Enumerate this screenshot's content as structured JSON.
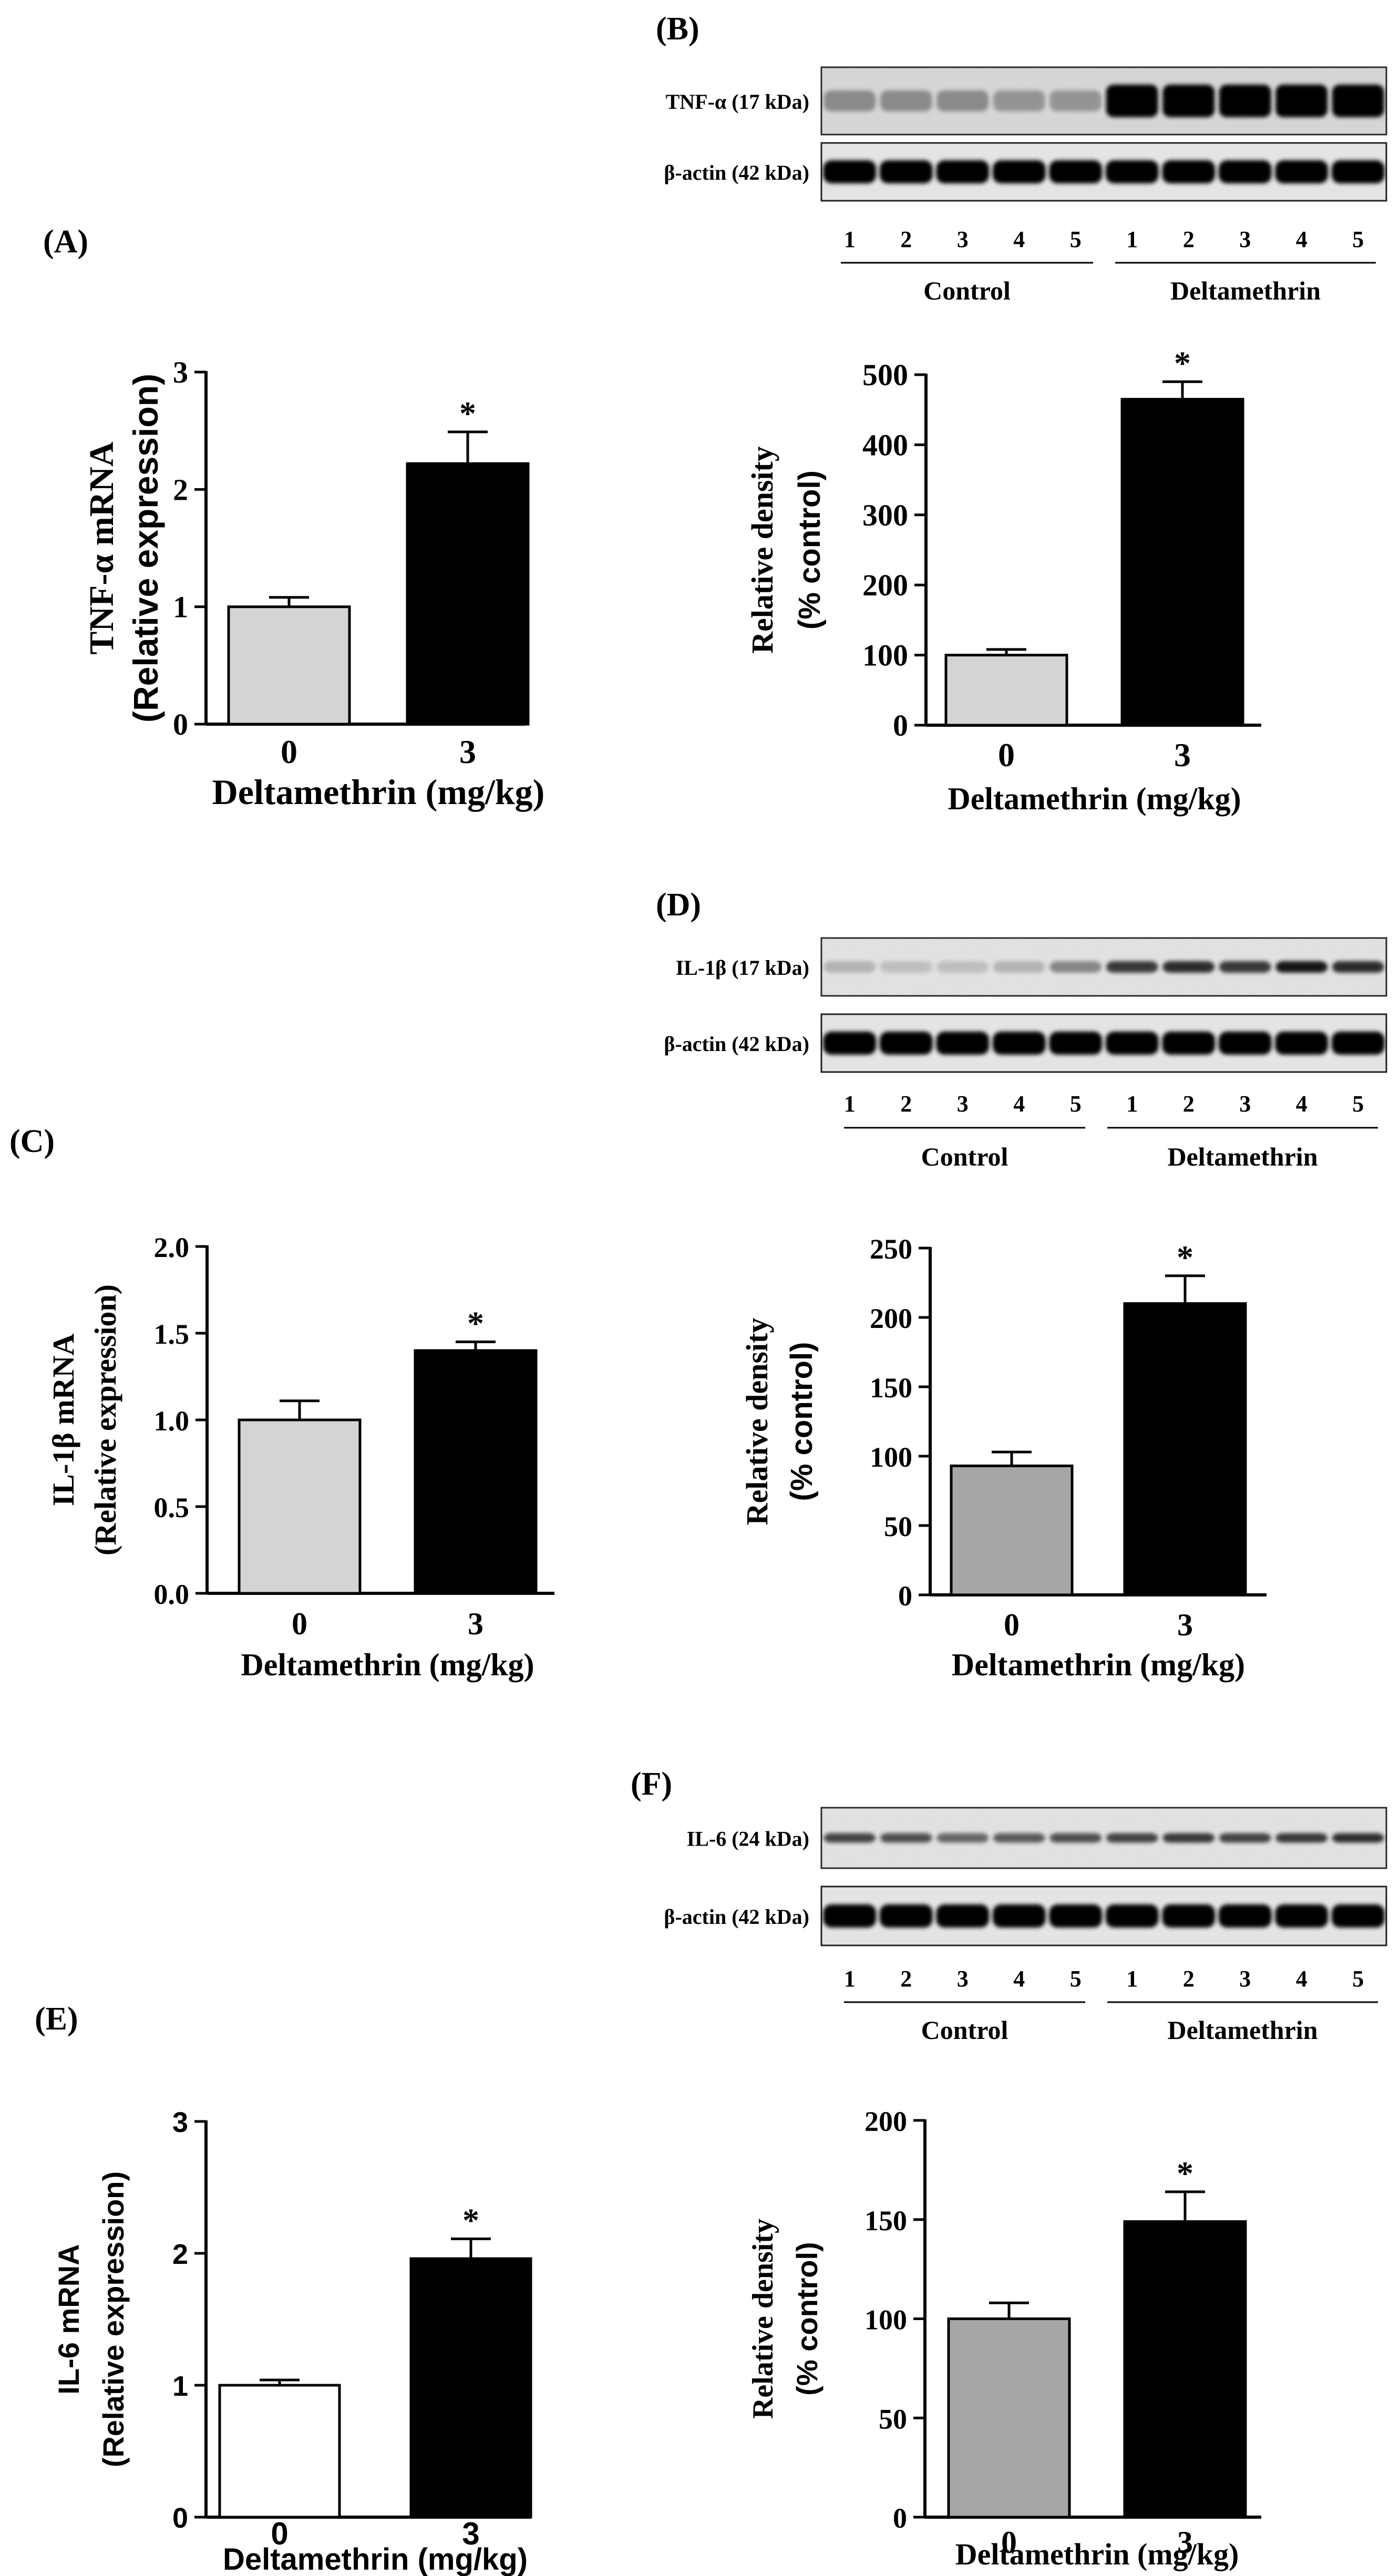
{
  "figure": {
    "panels": {
      "A": "(A)",
      "B": "(B)",
      "C": "(C)",
      "D": "(D)",
      "E": "(E)",
      "F": "(F)"
    },
    "lanes": [
      "1",
      "2",
      "3",
      "4",
      "5",
      "1",
      "2",
      "3",
      "4",
      "5"
    ],
    "groups": [
      "Control",
      "Deltamethrin"
    ],
    "blots": [
      {
        "panel": "B",
        "target": "TNF-α (17 kDa)",
        "loading": "β-actin (42 kDa)"
      },
      {
        "panel": "D",
        "target": "IL-1β (17 kDa)",
        "loading": "β-actin (42 kDa)"
      },
      {
        "panel": "F",
        "target": "IL-6 (24 kDa)",
        "loading": "β-actin (42 kDa)"
      }
    ]
  },
  "chart_data": [
    {
      "panel": "A",
      "type": "bar",
      "categories": [
        "0",
        "3"
      ],
      "values": [
        1.0,
        2.22
      ],
      "errors": [
        0.08,
        0.27
      ],
      "significance": [
        "",
        "*"
      ],
      "ylabel": [
        "TNF-α mRNA",
        "(Relative expression)"
      ],
      "xlabel": "Deltamethrin (mg/kg)",
      "ylim": [
        0,
        3
      ],
      "yticks": [
        "0",
        "1",
        "2",
        "3"
      ],
      "colors": [
        "#d4d4d4",
        "#000000"
      ]
    },
    {
      "panel": "B",
      "type": "bar",
      "categories": [
        "0",
        "3"
      ],
      "values": [
        100,
        465
      ],
      "errors": [
        8,
        25
      ],
      "significance": [
        "",
        "*"
      ],
      "ylabel": [
        "Relative density",
        "(% control)"
      ],
      "xlabel": "Deltamethrin (mg/kg)",
      "ylim": [
        0,
        500
      ],
      "yticks": [
        "0",
        "100",
        "200",
        "300",
        "400",
        "500"
      ],
      "colors": [
        "#d4d4d4",
        "#000000"
      ]
    },
    {
      "panel": "C",
      "type": "bar",
      "categories": [
        "0",
        "3"
      ],
      "values": [
        1.0,
        1.4
      ],
      "errors": [
        0.11,
        0.05
      ],
      "significance": [
        "",
        "*"
      ],
      "ylabel": [
        "IL-1β mRNA",
        "(Relative expression)"
      ],
      "xlabel": "Deltamethrin (mg/kg)",
      "ylim": [
        0,
        2
      ],
      "yticks": [
        "0.0",
        "0.5",
        "1.0",
        "1.5",
        "2.0"
      ],
      "colors": [
        "#d4d4d4",
        "#000000"
      ]
    },
    {
      "panel": "D",
      "type": "bar",
      "categories": [
        "0",
        "3"
      ],
      "values": [
        93,
        210
      ],
      "errors": [
        10,
        20
      ],
      "significance": [
        "",
        "*"
      ],
      "ylabel": [
        "Relative density",
        "(% control)"
      ],
      "xlabel": "Deltamethrin (mg/kg)",
      "ylim": [
        0,
        250
      ],
      "yticks": [
        "0",
        "50",
        "100",
        "150",
        "200",
        "250"
      ],
      "colors": [
        "#a6a6a6",
        "#000000"
      ]
    },
    {
      "panel": "E",
      "type": "bar",
      "categories": [
        "0",
        "3"
      ],
      "values": [
        1.0,
        1.96
      ],
      "errors": [
        0.04,
        0.15
      ],
      "significance": [
        "",
        "*"
      ],
      "ylabel": [
        "IL-6 mRNA",
        "(Relative expression)"
      ],
      "xlabel": "Deltamethrin (mg/kg)",
      "ylim": [
        0,
        3
      ],
      "yticks": [
        "0",
        "1",
        "2",
        "3"
      ],
      "colors": [
        "#ffffff",
        "#000000"
      ]
    },
    {
      "panel": "F",
      "type": "bar",
      "categories": [
        "0",
        "3"
      ],
      "values": [
        100,
        149
      ],
      "errors": [
        8,
        15
      ],
      "significance": [
        "",
        "*"
      ],
      "ylabel": [
        "Relative density",
        "(% control)"
      ],
      "xlabel": "Deltamethrin (mg/kg)",
      "ylim": [
        0,
        200
      ],
      "yticks": [
        "0",
        "50",
        "100",
        "150",
        "200"
      ],
      "colors": [
        "#a6a6a6",
        "#000000"
      ]
    }
  ]
}
